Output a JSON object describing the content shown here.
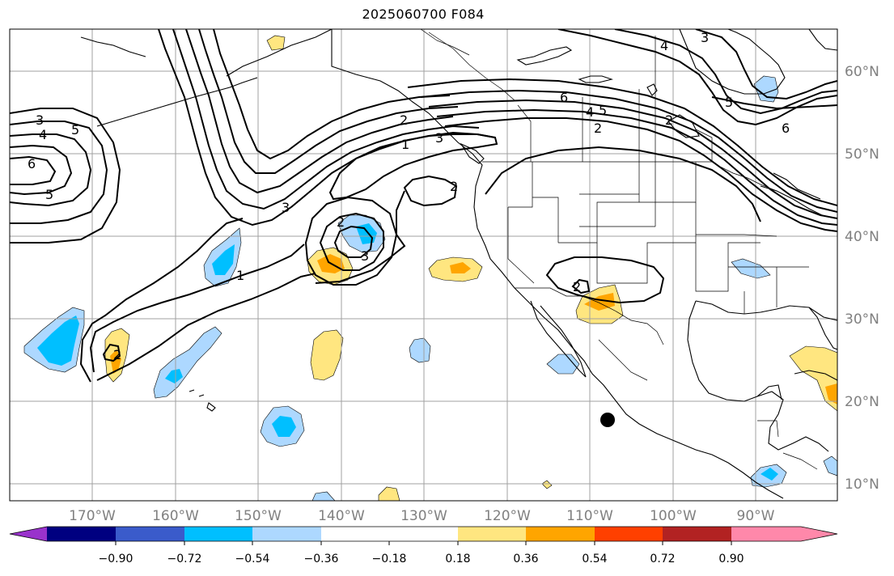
{
  "title": "2025060700 F084",
  "map": {
    "lon_labels": [
      "170°W",
      "160°W",
      "150°W",
      "140°W",
      "130°W",
      "120°W",
      "110°W",
      "100°W",
      "90°W"
    ],
    "lat_labels": [
      "60°N",
      "50°N",
      "40°N",
      "30°N",
      "20°N",
      "10°N"
    ],
    "contour_labels": [
      "3",
      "4",
      "5",
      "6",
      "5",
      "3",
      "2",
      "1",
      "3",
      "2",
      "2",
      "1",
      "6",
      "4",
      "5",
      "2",
      "5",
      "4",
      "3",
      "6",
      "2",
      "3",
      "2",
      "2"
    ]
  },
  "colorbar": {
    "tick_labels": [
      "−0.90",
      "−0.72",
      "−0.54",
      "−0.36",
      "−0.18",
      "0.18",
      "0.36",
      "0.54",
      "0.72",
      "0.90"
    ],
    "colors": {
      "purple": "#9932cc",
      "navy": "#000080",
      "royal": "#3a5bcb",
      "deepsky": "#00bfff",
      "lightblue": "#add8ff",
      "white": "#ffffff",
      "yellow": "#ffe680",
      "orange": "#ffa500",
      "redorange": "#ff4000",
      "firebrick": "#b22222",
      "pink": "#ff88aa"
    }
  }
}
